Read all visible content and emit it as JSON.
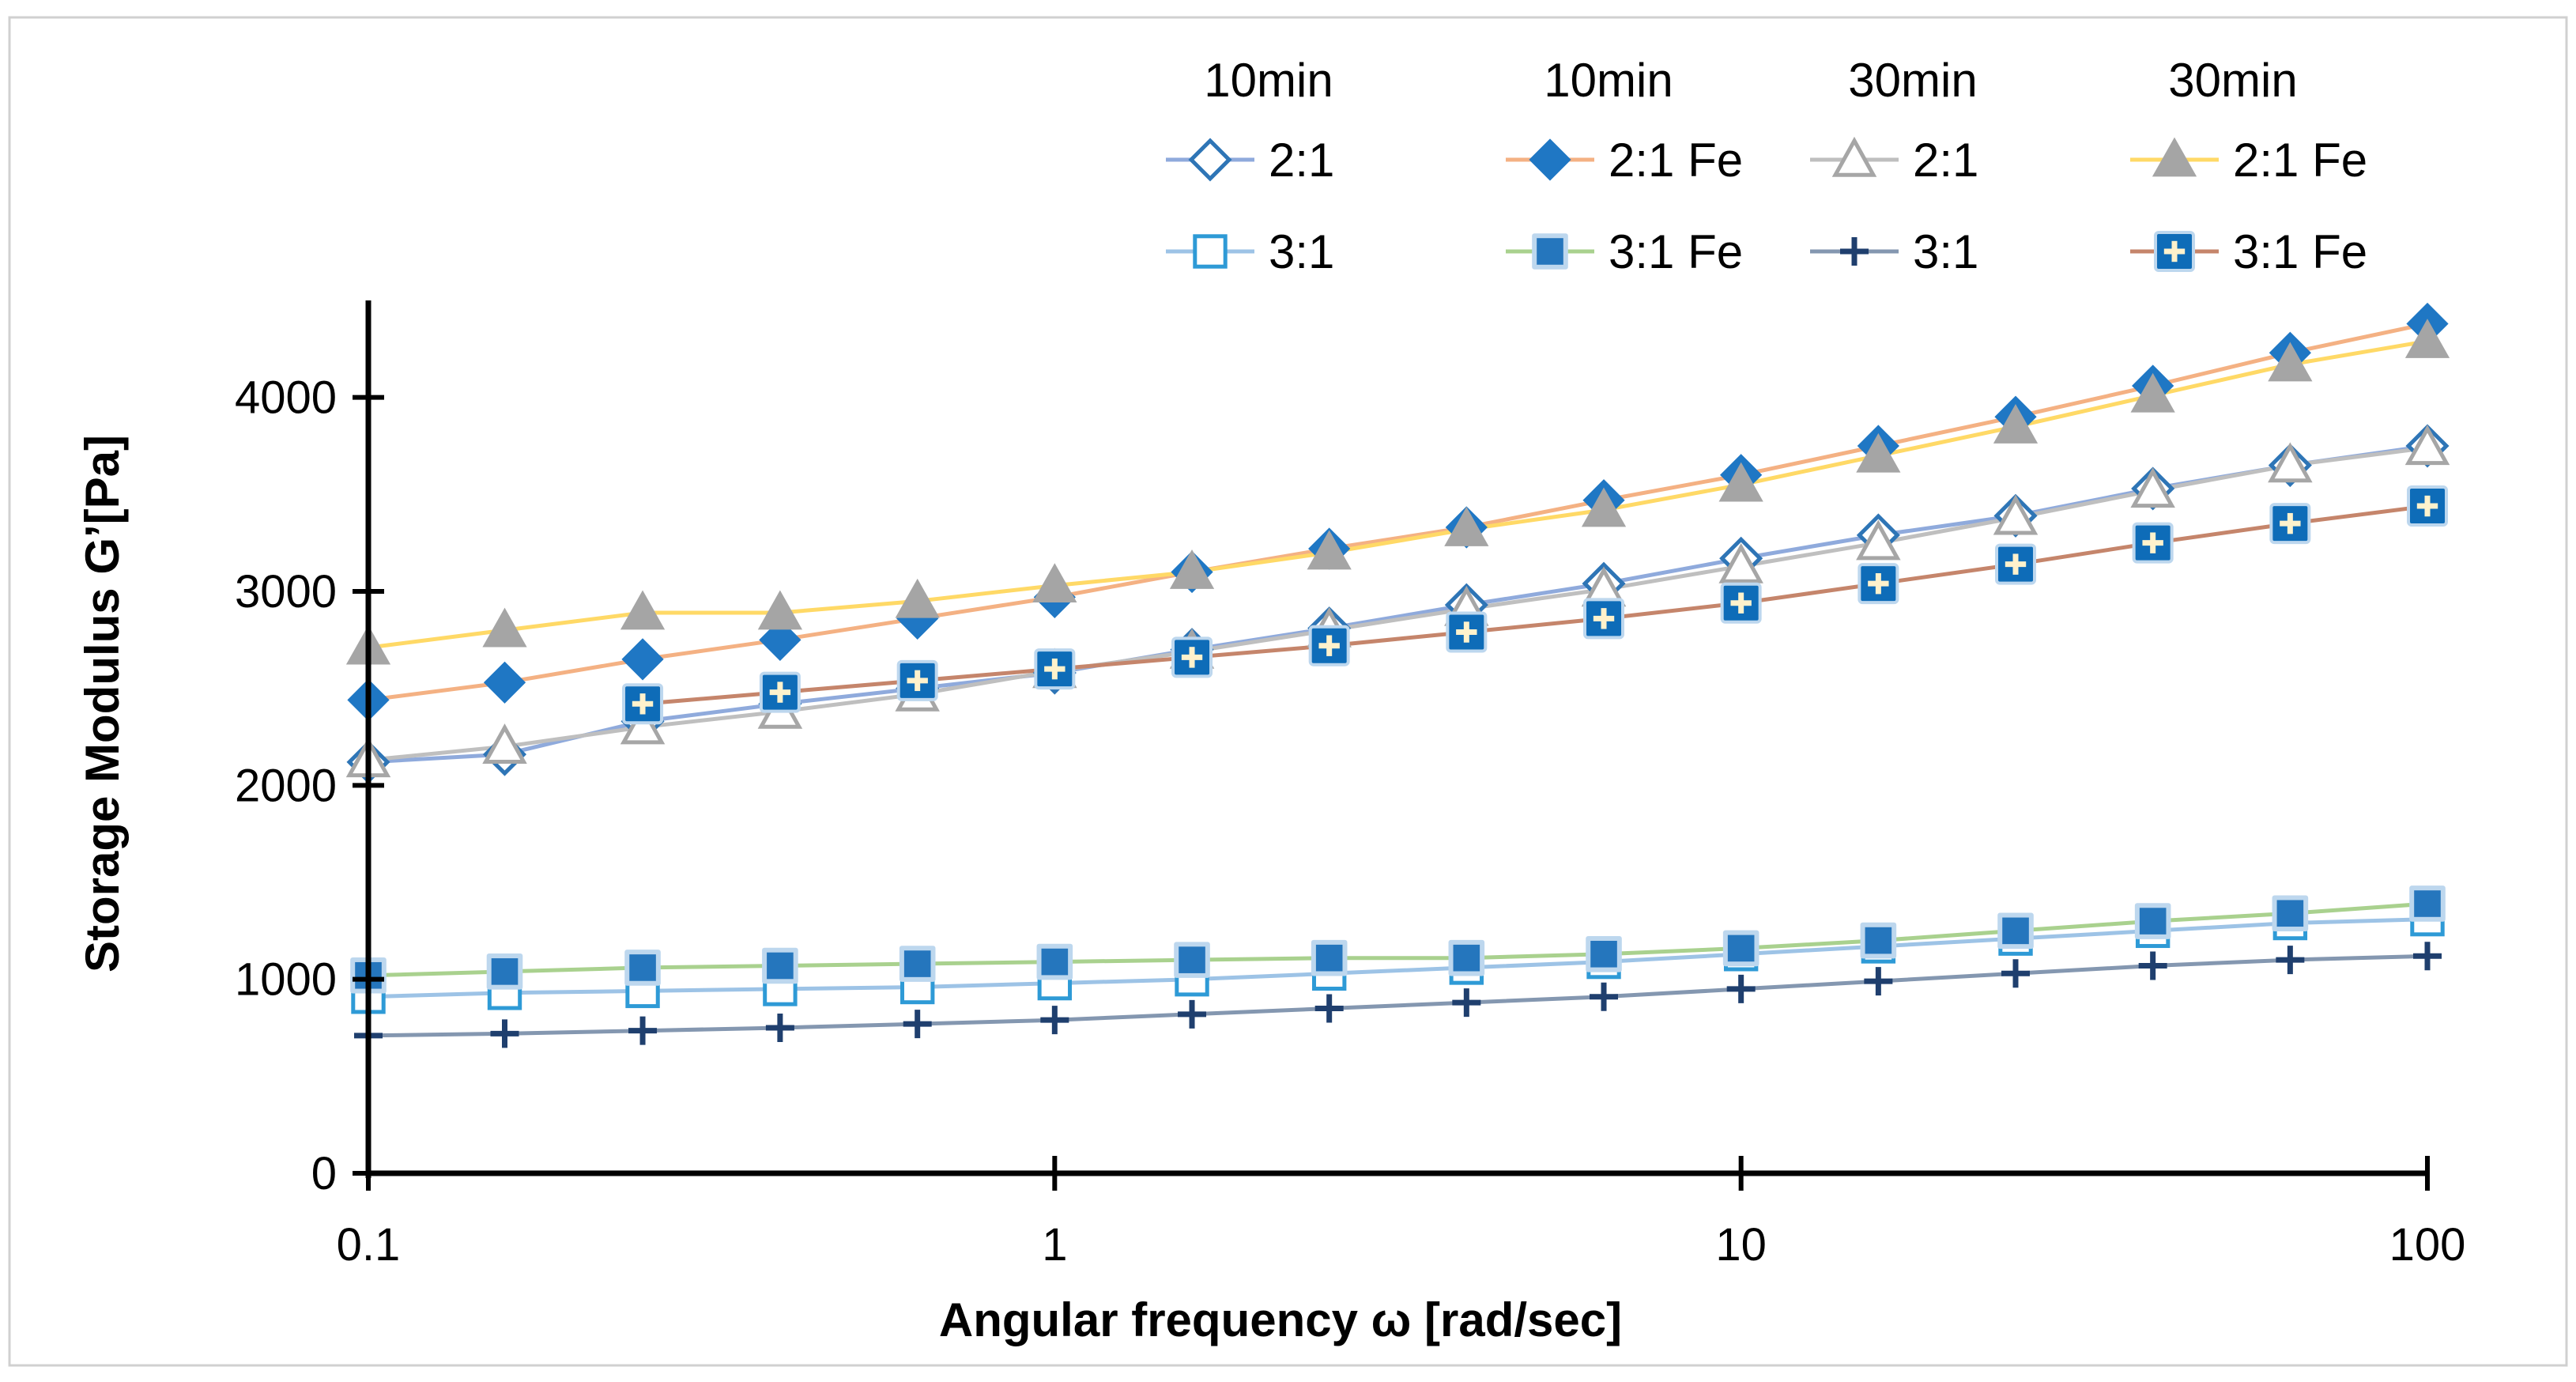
{
  "chart_data": {
    "type": "line",
    "x_scale": "log",
    "xlabel": "Angular frequency ω [rad/sec]",
    "ylabel": "Storage Modulus G’[Pa]",
    "xlim": [
      0.1,
      100
    ],
    "ylim": [
      0,
      4500
    ],
    "x_ticks": [
      0.1,
      1,
      10,
      100
    ],
    "x_tick_labels": [
      "0.1",
      "1",
      "10",
      "100"
    ],
    "y_ticks": [
      0,
      1000,
      2000,
      3000,
      4000
    ],
    "y_tick_labels": [
      "0",
      "1000",
      "2000",
      "3000",
      "4000"
    ],
    "legend_position": "top-right",
    "legend_group_headers": [
      "10min",
      "10min",
      "30min",
      "30min"
    ],
    "x": [
      0.1,
      0.158,
      0.251,
      0.398,
      0.631,
      1,
      1.585,
      2.512,
      3.981,
      6.31,
      10,
      15.85,
      25.12,
      39.81,
      63.1,
      100
    ],
    "series": [
      {
        "name": "2:1",
        "group": "10min",
        "marker": "diamond-open",
        "line_color": "#8faadc",
        "marker_color": "#2e75b6",
        "values": [
          2120,
          2160,
          2330,
          2420,
          2500,
          2580,
          2700,
          2810,
          2930,
          3040,
          3170,
          3290,
          3390,
          3530,
          3650,
          3750
        ]
      },
      {
        "name": "2:1 Fe",
        "group": "10min",
        "marker": "diamond-filled",
        "line_color": "#f4b183",
        "marker_color": "#1f77c4",
        "values": [
          2440,
          2530,
          2650,
          2750,
          2860,
          2970,
          3100,
          3220,
          3330,
          3470,
          3600,
          3750,
          3900,
          4060,
          4230,
          4380
        ]
      },
      {
        "name": "2:1",
        "group": "30min",
        "marker": "triangle-open",
        "line_color": "#bfbfbf",
        "marker_color": "#a6a6a6",
        "values": [
          2130,
          2200,
          2300,
          2380,
          2470,
          2590,
          2690,
          2800,
          2910,
          3010,
          3130,
          3250,
          3380,
          3520,
          3650,
          3740
        ]
      },
      {
        "name": "2:1 Fe",
        "group": "30min",
        "marker": "triangle-filled",
        "line_color": "#ffd966",
        "marker_color": "#a5a5a5",
        "values": [
          2710,
          2800,
          2890,
          2890,
          2950,
          3030,
          3100,
          3200,
          3320,
          3420,
          3550,
          3700,
          3850,
          4010,
          4170,
          4290
        ]
      },
      {
        "name": "3:1",
        "group": "10min",
        "marker": "square-open",
        "line_color": "#9dc3e6",
        "marker_color": "#2e9ad6",
        "values": [
          910,
          930,
          940,
          950,
          960,
          980,
          1000,
          1030,
          1060,
          1090,
          1130,
          1170,
          1210,
          1250,
          1290,
          1310
        ]
      },
      {
        "name": "3:1 Fe",
        "group": "10min",
        "marker": "square-filled",
        "line_color": "#a9d18e",
        "marker_color": "#2576bd",
        "values": [
          1020,
          1040,
          1060,
          1070,
          1080,
          1090,
          1100,
          1110,
          1110,
          1130,
          1160,
          1200,
          1250,
          1300,
          1340,
          1390
        ]
      },
      {
        "name": "3:1",
        "group": "30min",
        "marker": "plus",
        "line_color": "#8497b0",
        "marker_color": "#1f3f6e",
        "values": [
          710,
          720,
          735,
          750,
          770,
          790,
          820,
          850,
          880,
          910,
          950,
          990,
          1030,
          1070,
          1100,
          1120
        ]
      },
      {
        "name": "3:1 Fe",
        "group": "30min",
        "marker": "plus-square",
        "line_color": "#c5856b",
        "marker_color": "#0e6cb8",
        "values": [
          null,
          null,
          2420,
          2480,
          2540,
          2600,
          2660,
          2720,
          2790,
          2860,
          2940,
          3040,
          3140,
          3250,
          3350,
          3440
        ]
      }
    ]
  }
}
